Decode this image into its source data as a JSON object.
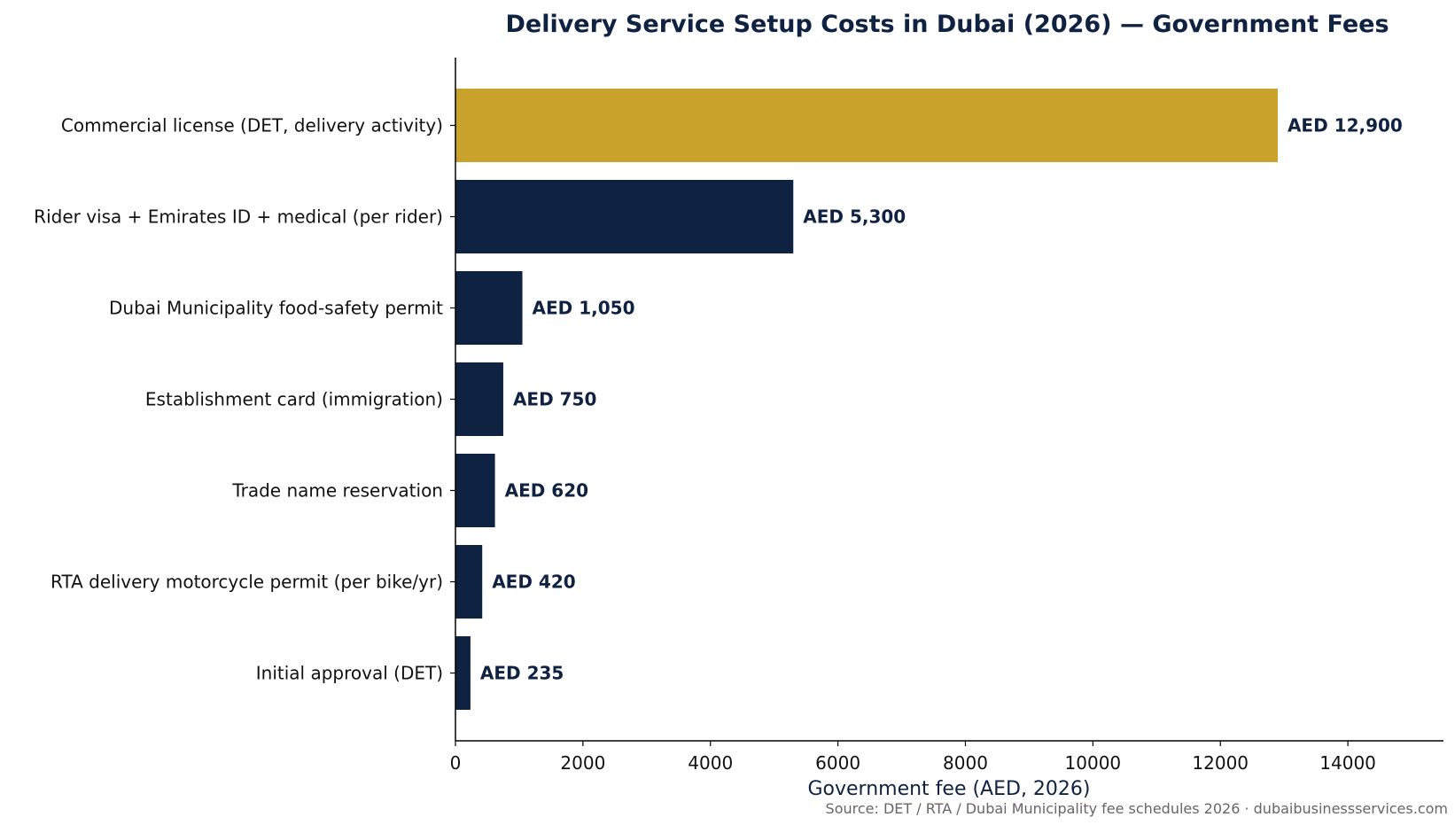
{
  "chart_data": {
    "type": "bar",
    "orientation": "horizontal",
    "title": "Delivery Service Setup Costs in Dubai (2026) — Government Fees",
    "xlabel": "Government fee (AED, 2026)",
    "ylabel": "",
    "source": "Source: DET / RTA / Dubai Municipality fee schedules 2026 · dubaibusinessservices.com",
    "categories": [
      "Commercial license (DET, delivery activity)",
      "Rider visa + Emirates ID + medical (per rider)",
      "Dubai Municipality food-safety permit",
      "Establishment card (immigration)",
      "Trade name reservation",
      "RTA delivery motorcycle permit (per bike/yr)",
      "Initial approval (DET)"
    ],
    "values": [
      12900,
      5300,
      1050,
      750,
      620,
      420,
      235
    ],
    "data_labels": [
      "AED 12,900",
      "AED 5,300",
      "AED 1,050",
      "AED 750",
      "AED 620",
      "AED 420",
      "AED 235"
    ],
    "bar_colors": [
      "#c9a22b",
      "#0f2241",
      "#0f2241",
      "#0f2241",
      "#0f2241",
      "#0f2241",
      "#0f2241"
    ],
    "xlim": [
      0,
      15500
    ],
    "xticks": [
      0,
      2000,
      4000,
      6000,
      8000,
      10000,
      12000,
      14000
    ],
    "xtick_labels": [
      "0",
      "2000",
      "4000",
      "6000",
      "8000",
      "10000",
      "12000",
      "14000"
    ],
    "grid": false,
    "legend": "none"
  }
}
